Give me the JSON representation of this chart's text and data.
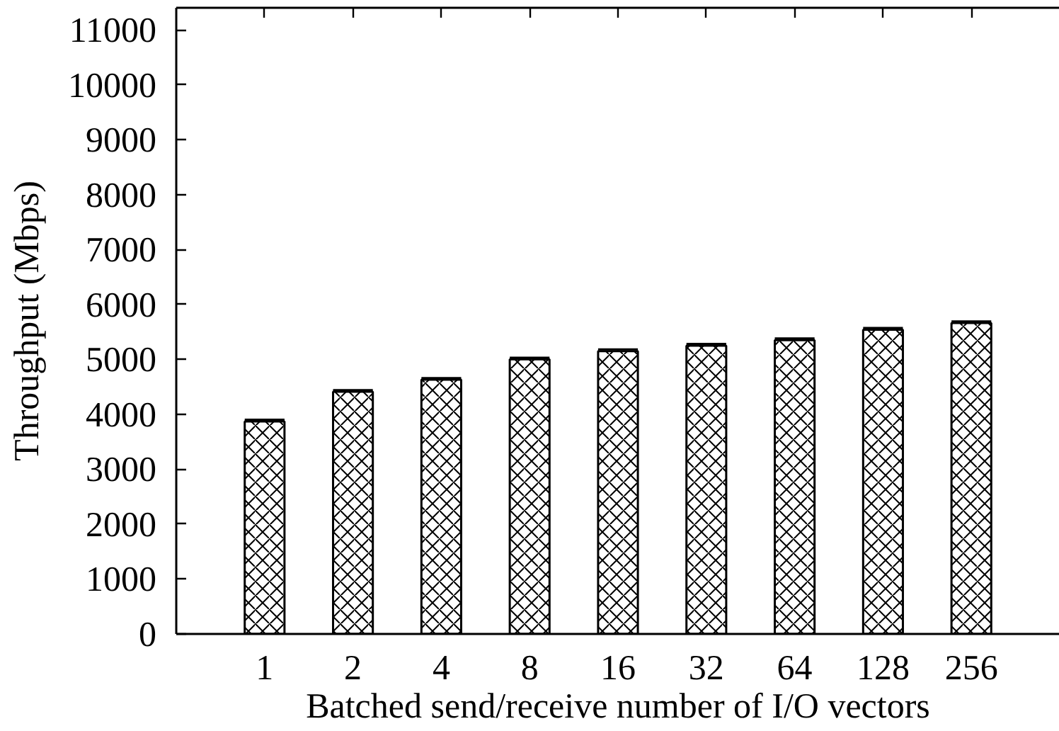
{
  "chart_data": {
    "type": "bar",
    "xlabel": "Batched send/receive number of I/O vectors",
    "ylabel": "Throughput (Mbps)",
    "categories": [
      "1",
      "2",
      "4",
      "8",
      "16",
      "32",
      "64",
      "128",
      "256"
    ],
    "values": [
      3870,
      4410,
      4630,
      5000,
      5150,
      5250,
      5350,
      5540,
      5660
    ],
    "errors": [
      30,
      30,
      30,
      30,
      30,
      30,
      30,
      30,
      30
    ],
    "color": "#000000",
    "ylim": [
      0,
      11400
    ],
    "yticks": [
      0,
      1000,
      2000,
      3000,
      4000,
      5000,
      6000,
      7000,
      8000,
      9000,
      10000,
      11000
    ]
  }
}
